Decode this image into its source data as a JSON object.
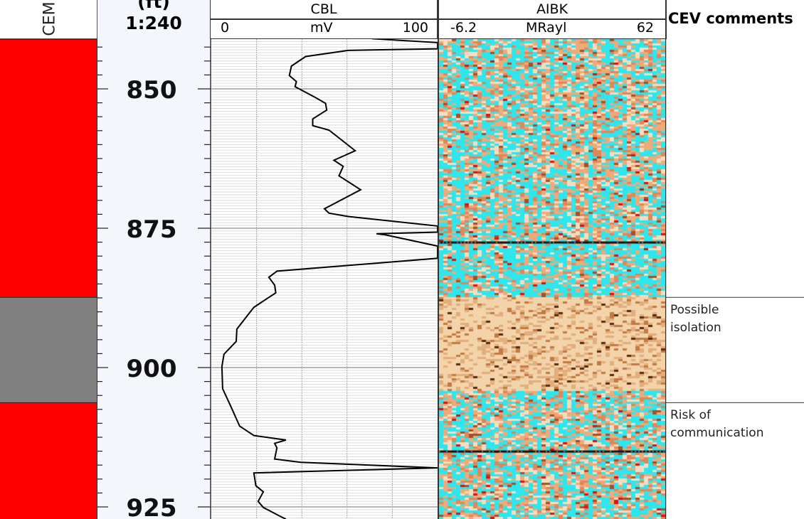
{
  "header": {
    "cement_track_label": "CEM",
    "depth_unit": "(ft)",
    "depth_scale": "1:240",
    "cbl": {
      "name": "CBL",
      "min": "0",
      "unit": "mV",
      "max": "100"
    },
    "aibk": {
      "name": "AIBK",
      "min": "-6.2",
      "unit": "MRayl",
      "max": "62"
    },
    "comments_title": "CEV comments"
  },
  "colors": {
    "cement_poor": "#ff0000",
    "cement_good": "#808080",
    "aibk_low": "#2ee6ee",
    "aibk_high": "#e8b27e",
    "curve": "#000000"
  },
  "chart_data": {
    "type": "well-log",
    "depth_range": [
      841.1,
      927.2
    ],
    "depth_ticks": [
      850,
      875,
      900,
      925
    ],
    "cbl_range": [
      0,
      100
    ],
    "cbl_grid_mV": [
      20,
      40,
      60,
      80
    ],
    "cbl_curve": [
      [
        841.0,
        71
      ],
      [
        841.7,
        100
      ],
      [
        842.8,
        100
      ],
      [
        843.1,
        60.5
      ],
      [
        844.2,
        41.7
      ],
      [
        845.9,
        35.4
      ],
      [
        847.6,
        34.5
      ],
      [
        848.7,
        37.6
      ],
      [
        849.6,
        37
      ],
      [
        851.5,
        45.8
      ],
      [
        852.6,
        50.5
      ],
      [
        853.8,
        51
      ],
      [
        855.4,
        44.8
      ],
      [
        856.6,
        44.8
      ],
      [
        857.4,
        52
      ],
      [
        858.8,
        56.4
      ],
      [
        861.1,
        63.6
      ],
      [
        862.8,
        54.2
      ],
      [
        863.9,
        58.3
      ],
      [
        865.6,
        56.4
      ],
      [
        868.1,
        66
      ],
      [
        871.5,
        50
      ],
      [
        872.3,
        52
      ],
      [
        872.9,
        60.5
      ],
      [
        874.6,
        100
      ],
      [
        875.7,
        100
      ],
      [
        876.0,
        73
      ],
      [
        876.2,
        77
      ],
      [
        878.2,
        100
      ],
      [
        880.4,
        100
      ],
      [
        882.7,
        29
      ],
      [
        883.8,
        25.4
      ],
      [
        885.2,
        28
      ],
      [
        886.6,
        28.5
      ],
      [
        889.2,
        18.8
      ],
      [
        890.8,
        15.7
      ],
      [
        893.1,
        11.3
      ],
      [
        895.3,
        11
      ],
      [
        897.6,
        5.6
      ],
      [
        899.8,
        4.7
      ],
      [
        903.8,
        5
      ],
      [
        906.6,
        8.2
      ],
      [
        910.5,
        12.5
      ],
      [
        912.2,
        18.8
      ],
      [
        913.0,
        33
      ],
      [
        913.6,
        28
      ],
      [
        914.4,
        29
      ],
      [
        916.4,
        28
      ],
      [
        917.0,
        39.5
      ],
      [
        918.0,
        100
      ],
      [
        918.9,
        18.8
      ],
      [
        921.2,
        19.7
      ],
      [
        922.3,
        23
      ],
      [
        924.0,
        20.7
      ],
      [
        925.1,
        23
      ],
      [
        926.8,
        31
      ],
      [
        927.2,
        33
      ]
    ],
    "cement_zones": [
      {
        "from": 841.1,
        "to": 887.4,
        "status": "poor"
      },
      {
        "from": 887.4,
        "to": 906.3,
        "status": "good"
      },
      {
        "from": 906.3,
        "to": 927.2,
        "status": "poor"
      }
    ],
    "comments": [
      {
        "from": 887.4,
        "to": 906.3,
        "text_lines": [
          "Possible",
          "isolation"
        ]
      },
      {
        "from": 906.3,
        "to": 927.2,
        "text_lines": [
          "Risk of",
          "communication"
        ]
      }
    ]
  }
}
